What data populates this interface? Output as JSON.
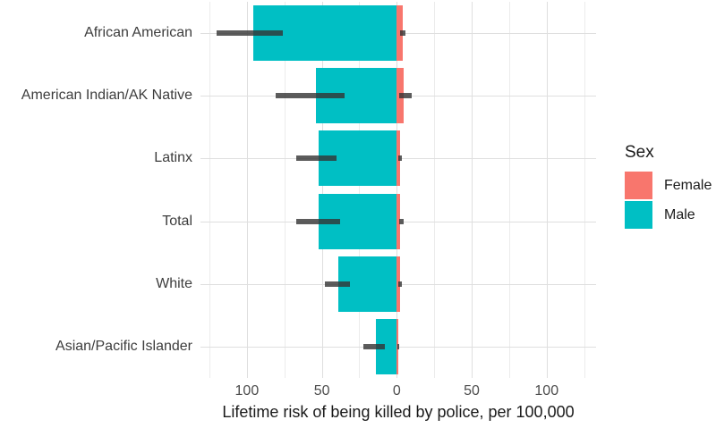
{
  "chart_data": {
    "type": "bar",
    "subtype": "horizontal-diverging-population-pyramid",
    "title": "",
    "xlabel": "Lifetime risk of being killed by police, per 100,000",
    "ylabel": "",
    "categories": [
      "African American",
      "American Indian/AK Native",
      "Latinx",
      "Total",
      "White",
      "Asian/Pacific Islander"
    ],
    "series": [
      {
        "name": "Female",
        "color": "#F8766D",
        "side": "right",
        "values": [
          3.7,
          4.8,
          2.3,
          2.4,
          2.2,
          1.0
        ],
        "ci_low": [
          2.2,
          1.5,
          1.0,
          1.4,
          1.2,
          0.3
        ],
        "ci_high": [
          5.6,
          10.0,
          3.5,
          4.5,
          3.6,
          1.5
        ]
      },
      {
        "name": "Male",
        "color": "#00BFC4",
        "side": "left",
        "values": [
          96,
          54,
          52,
          52,
          39,
          14
        ],
        "ci_low": [
          76,
          35,
          40,
          38,
          31,
          8
        ],
        "ci_high": [
          120,
          81,
          67,
          67,
          48,
          22
        ]
      }
    ],
    "x_axis": {
      "range": [
        -131,
        133
      ],
      "tick_values": [
        -100,
        -50,
        0,
        50,
        100
      ],
      "tick_labels": [
        "100",
        "50",
        "0",
        "50",
        "100"
      ],
      "minor_tick_values": [
        -125,
        -75,
        -25,
        25,
        75,
        125
      ]
    },
    "legend": {
      "title": "Sex",
      "entries": [
        {
          "label": "Female",
          "color": "#F8766D"
        },
        {
          "label": "Male",
          "color": "#00BFC4"
        }
      ],
      "position": "right"
    },
    "grid": {
      "major_color": "#DFDFDF",
      "minor_color": "#ECECEC",
      "background": "#FFFFFF"
    },
    "errorbar_color": "rgba(51,51,51,0.8)"
  }
}
